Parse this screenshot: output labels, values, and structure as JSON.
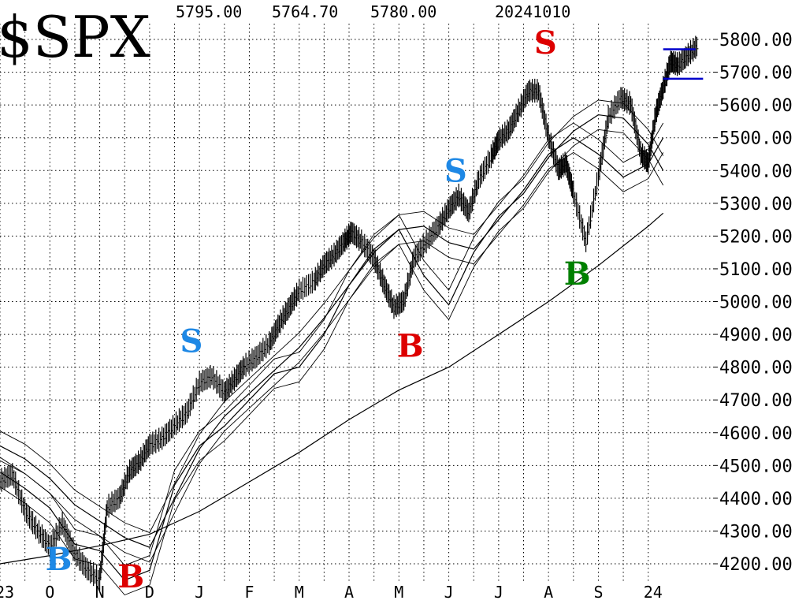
{
  "header": {
    "symbol": "$SPX",
    "high": "5795.00",
    "low": "5764.70",
    "close": "5780.00",
    "date": "20241010"
  },
  "chart_data": {
    "type": "line",
    "title": "$SPX",
    "y_tick_labels": [
      "5800.00",
      "5700.00",
      "5600.00",
      "5500.00",
      "5400.00",
      "5300.00",
      "5200.00",
      "5100.00",
      "5000.00",
      "4900.00",
      "4800.00",
      "4700.00",
      "4600.00",
      "4500.00",
      "4400.00",
      "4300.00",
      "4200.00"
    ],
    "ylim": [
      4150,
      5850
    ],
    "x_tick_labels": [
      "23",
      "O",
      "N",
      "D",
      "J",
      "F",
      "M",
      "A",
      "M",
      "J",
      "J",
      "A",
      "S",
      "24"
    ],
    "grid": true,
    "series": [
      {
        "x": [
          0,
          0.5,
          1,
          1.5,
          2,
          2.5,
          3,
          3.5,
          4,
          4.5,
          5,
          5.5,
          6,
          6.5,
          7,
          7.5,
          8,
          8.5,
          9,
          9.5,
          10,
          10.5,
          11,
          11.5,
          12,
          12.5,
          13,
          13.3
        ],
        "values": [
          4480,
          4430,
          4370,
          4260,
          4240,
          4150,
          4180,
          4440,
          4560,
          4620,
          4700,
          4780,
          4800,
          4900,
          5050,
          5160,
          5220,
          5080,
          4990,
          5150,
          5260,
          5330,
          5440,
          5520,
          5570,
          5560,
          5480,
          5400
        ]
      },
      {
        "x": [
          0,
          0.5,
          1,
          1.5,
          2,
          2.5,
          3,
          3.5,
          4,
          4.5,
          5,
          5.5,
          6,
          6.5,
          7,
          7.5,
          8,
          8.5,
          9,
          9.5,
          10,
          10.5,
          11,
          11.5,
          12,
          12.5,
          13,
          13.3
        ],
        "values": [
          4560,
          4520,
          4460,
          4380,
          4330,
          4280,
          4250,
          4400,
          4550,
          4650,
          4720,
          4790,
          4860,
          4950,
          5050,
          5150,
          5220,
          5230,
          5180,
          5160,
          5250,
          5340,
          5450,
          5500,
          5450,
          5380,
          5420,
          5500
        ]
      },
      {
        "x": [
          0,
          1,
          2,
          3,
          4,
          5,
          6,
          7,
          8,
          9,
          10,
          11,
          12,
          13,
          13.3
        ],
        "values": [
          4200,
          4225,
          4255,
          4290,
          4360,
          4450,
          4540,
          4640,
          4730,
          4800,
          4900,
          5000,
          5110,
          5230,
          5270
        ]
      }
    ],
    "price_points": [
      [
        0,
        4450
      ],
      [
        0.25,
        4470
      ],
      [
        0.5,
        4360
      ],
      [
        0.75,
        4300
      ],
      [
        1,
        4250
      ],
      [
        1.25,
        4320
      ],
      [
        1.5,
        4230
      ],
      [
        1.75,
        4180
      ],
      [
        2,
        4150
      ],
      [
        2.15,
        4370
      ],
      [
        2.4,
        4400
      ],
      [
        2.6,
        4480
      ],
      [
        2.8,
        4510
      ],
      [
        3,
        4560
      ],
      [
        3.25,
        4580
      ],
      [
        3.5,
        4620
      ],
      [
        3.75,
        4660
      ],
      [
        4,
        4750
      ],
      [
        4.25,
        4770
      ],
      [
        4.5,
        4720
      ],
      [
        4.7,
        4760
      ],
      [
        4.9,
        4800
      ],
      [
        5.15,
        4830
      ],
      [
        5.4,
        4870
      ],
      [
        5.6,
        4930
      ],
      [
        5.8,
        4980
      ],
      [
        6,
        5030
      ],
      [
        6.3,
        5060
      ],
      [
        6.5,
        5110
      ],
      [
        6.7,
        5140
      ],
      [
        6.9,
        5180
      ],
      [
        7.05,
        5210
      ],
      [
        7.25,
        5180
      ],
      [
        7.5,
        5130
      ],
      [
        7.7,
        5050
      ],
      [
        7.9,
        4980
      ],
      [
        8.1,
        5000
      ],
      [
        8.3,
        5130
      ],
      [
        8.55,
        5180
      ],
      [
        8.8,
        5230
      ],
      [
        9,
        5280
      ],
      [
        9.2,
        5320
      ],
      [
        9.4,
        5270
      ],
      [
        9.6,
        5370
      ],
      [
        9.85,
        5440
      ],
      [
        10,
        5490
      ],
      [
        10.2,
        5520
      ],
      [
        10.4,
        5580
      ],
      [
        10.6,
        5640
      ],
      [
        10.8,
        5640
      ],
      [
        11,
        5500
      ],
      [
        11.2,
        5400
      ],
      [
        11.35,
        5420
      ],
      [
        11.5,
        5330
      ],
      [
        11.75,
        5180
      ],
      [
        12,
        5380
      ],
      [
        12.2,
        5560
      ],
      [
        12.45,
        5620
      ],
      [
        12.65,
        5600
      ],
      [
        12.85,
        5450
      ],
      [
        13,
        5420
      ],
      [
        13.15,
        5570
      ],
      [
        13.3,
        5650
      ],
      [
        13.45,
        5730
      ],
      [
        13.6,
        5720
      ],
      [
        13.8,
        5750
      ],
      [
        14,
        5780
      ]
    ],
    "x_range": [
      0,
      14.3
    ],
    "signals": [
      {
        "letter": "B",
        "color": "#1e88e5",
        "x": 1.1,
        "y": 4215
      },
      {
        "letter": "B",
        "color": "#dd0000",
        "x": 2.55,
        "y": 4162
      },
      {
        "letter": "S",
        "color": "#1e88e5",
        "x": 3.8,
        "y": 4880
      },
      {
        "letter": "B",
        "color": "#dd0000",
        "x": 8.15,
        "y": 4865
      },
      {
        "letter": "S",
        "color": "#1e88e5",
        "x": 9.1,
        "y": 5400
      },
      {
        "letter": "S",
        "color": "#dd0000",
        "x": 10.9,
        "y": 5790
      },
      {
        "letter": "B",
        "color": "#008000",
        "x": 11.5,
        "y": 5085
      }
    ],
    "lines": [
      {
        "color": "#0000cc",
        "y": 5770,
        "x1": 13.3,
        "x2": 13.95
      },
      {
        "color": "#0000cc",
        "y": 5680,
        "x1": 13.3,
        "x2": 14.1
      }
    ]
  }
}
